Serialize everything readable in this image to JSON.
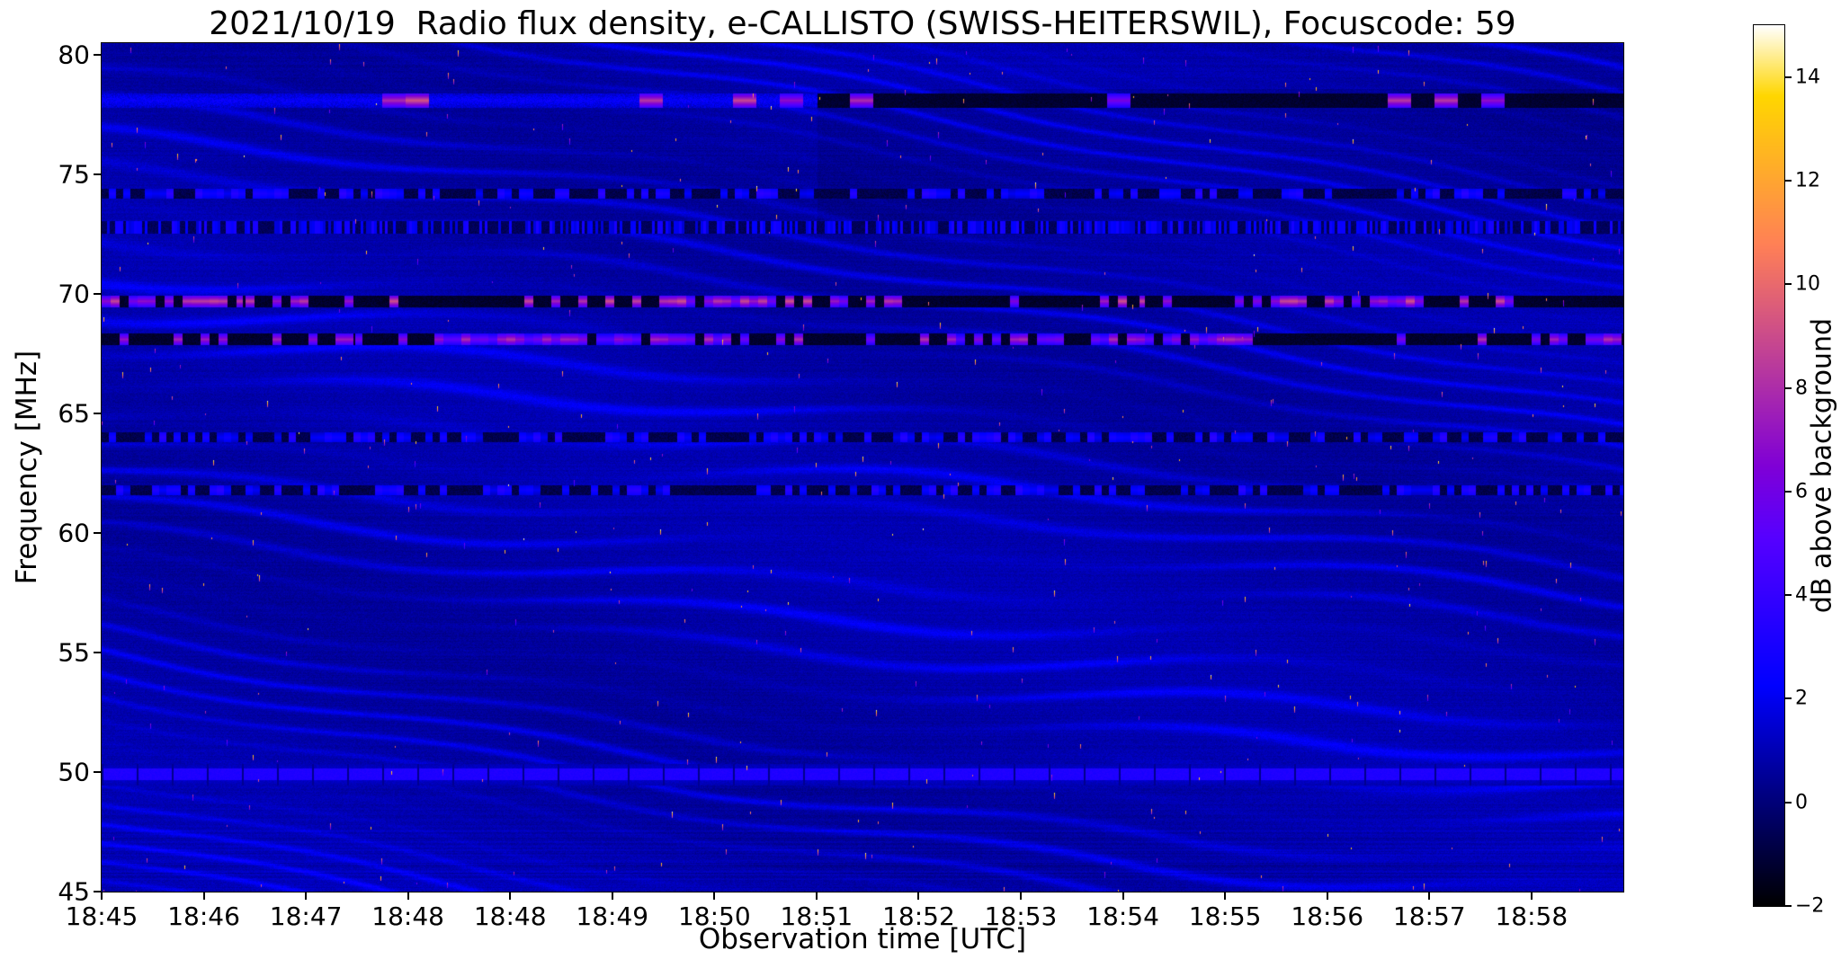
{
  "chart_data": {
    "type": "heatmap",
    "subtype": "radio-spectrogram",
    "title": "2021/10/19  Radio flux density, e-CALLISTO (SWISS-HEITERSWIL), Focuscode: 59",
    "date": "2021/10/19",
    "instrument": "e-CALLISTO",
    "station": "SWISS-HEITERSWIL",
    "focuscode": "59",
    "xlabel": "Observation time [UTC]",
    "ylabel": "Frequency [MHz]",
    "x_ticks": [
      "18:45",
      "18:46",
      "18:47",
      "18:48",
      "18:48",
      "18:49",
      "18:50",
      "18:51",
      "18:52",
      "18:53",
      "18:54",
      "18:55",
      "18:56",
      "18:57",
      "18:58"
    ],
    "y_ticks": [
      "80",
      "75",
      "70",
      "65",
      "60",
      "55",
      "50",
      "45"
    ],
    "y_tick_values": [
      80,
      75,
      70,
      65,
      60,
      55,
      50,
      45
    ],
    "freq_range_mhz": [
      45,
      80.5
    ],
    "time_range_utc": [
      "18:45",
      "18:59"
    ],
    "colorbar": {
      "label": "dB above background",
      "tick_labels": [
        "14",
        "12",
        "10",
        "8",
        "6",
        "4",
        "2",
        "0",
        "−2"
      ],
      "tick_values": [
        14,
        12,
        10,
        8,
        6,
        4,
        2,
        0,
        -2
      ],
      "value_range_db": [
        -2,
        15
      ],
      "colormap": "gnuplot2"
    },
    "rfi_bands": [
      {
        "freq_mhz": 78.1,
        "style": "blobs",
        "peak_db": 9,
        "note": "intermittent bright pink blobs on a blue line; right half of band mostly dark"
      },
      {
        "freq_mhz": 74.2,
        "style": "dashes",
        "peak_db": 3.5,
        "note": "dark channel with blue dashes"
      },
      {
        "freq_mhz": 72.8,
        "style": "speckle",
        "peak_db": 2.5,
        "note": "finely speckled dotted line"
      },
      {
        "freq_mhz": 69.7,
        "style": "bright-dashes",
        "peak_db": 9,
        "note": "strongest magenta/pink dashed RFI band"
      },
      {
        "freq_mhz": 68.1,
        "style": "bright-dashes",
        "peak_db": 8,
        "note": "second magenta/pink dashed RFI band"
      },
      {
        "freq_mhz": 64.0,
        "style": "dashes",
        "peak_db": 3,
        "note": "faint blue dashed band"
      },
      {
        "freq_mhz": 61.8,
        "style": "dashes",
        "peak_db": 3.5,
        "note": "blue dashed band"
      },
      {
        "freq_mhz": 49.9,
        "style": "solid-blocks",
        "peak_db": 3.5,
        "note": "continuous bright blue broadband strip divided into blocks by thin dark gaps"
      }
    ],
    "background": {
      "base_db": 0.8,
      "ripple_amp_db": 1.3,
      "speckle_count": 460,
      "description": "dark blue noise floor with slowly drifting diagonal interference ripples and sparse bright white/yellow/pink pixel speckles"
    }
  }
}
